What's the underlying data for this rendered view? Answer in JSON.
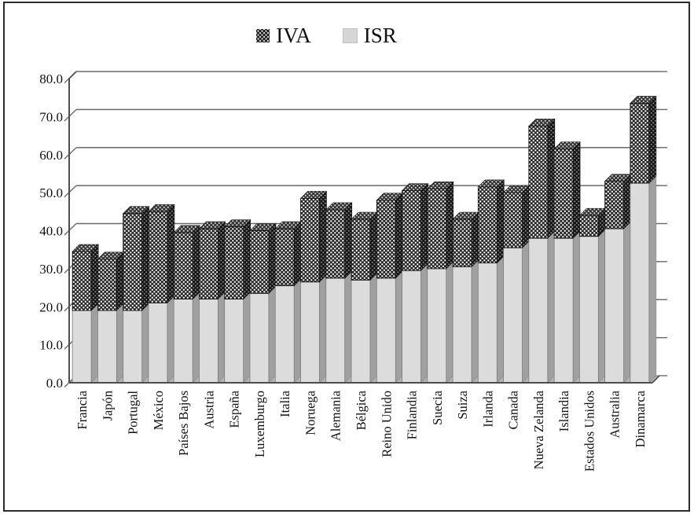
{
  "legend": {
    "items": [
      "IVA",
      "ISR"
    ]
  },
  "y_axis": {
    "tick_labels": [
      "0.0",
      "10.0",
      "20.0",
      "30.0",
      "40.0",
      "50.0",
      "60.0",
      "70.0",
      "80.0"
    ],
    "min": 0,
    "max": 80,
    "step": 10
  },
  "chart_data": {
    "type": "bar",
    "stacked": true,
    "style": "3d-column",
    "title": "",
    "xlabel": "",
    "ylabel": "",
    "ylim": [
      0,
      80
    ],
    "grid": true,
    "legend_position": "top-center",
    "categories": [
      "Francia",
      "Japón",
      "Portugal",
      "México",
      "Países Bajos",
      "Austria",
      "España",
      "Luxemburgo",
      "Italia",
      "Noruega",
      "Alemania",
      "Bélgica",
      "Reino Unido",
      "Finlandia",
      "Suecia",
      "Suiza",
      "Irlanda",
      "Canada",
      "Nueva Zelanda",
      "Islandia",
      "Estados Unidos",
      "Australia",
      "Dinamarca"
    ],
    "series": [
      {
        "name": "ISR",
        "values": [
          19.0,
          19.0,
          19.0,
          21.0,
          22.0,
          22.0,
          22.0,
          23.5,
          25.5,
          26.5,
          27.5,
          27.0,
          27.5,
          29.5,
          30.0,
          30.5,
          31.5,
          35.5,
          38.0,
          38.0,
          38.5,
          40.5,
          52.5
        ]
      },
      {
        "name": "IVA",
        "values": [
          15.5,
          13.5,
          25.5,
          24.0,
          17.5,
          18.5,
          19.0,
          16.5,
          15.0,
          22.0,
          18.0,
          16.0,
          20.5,
          21.0,
          21.0,
          12.5,
          20.0,
          14.5,
          29.5,
          23.5,
          5.5,
          12.5,
          21.0
        ]
      }
    ],
    "totals": [
      34.5,
      32.5,
      44.5,
      45.0,
      39.5,
      40.5,
      41.0,
      40.0,
      40.5,
      48.5,
      45.5,
      43.0,
      48.0,
      50.5,
      51.0,
      43.0,
      51.5,
      50.0,
      67.5,
      61.5,
      44.0,
      53.0,
      73.5
    ],
    "colors": {
      "iva_pattern_bg": "#262626",
      "iva_pattern_dot": "#fafafa",
      "isr_fill": "#dcdcdc",
      "isr_side": "#a0a0a0",
      "floor": "#b5b5b5",
      "gridline": "#6a6a6a",
      "axis": "#4d4d4d",
      "text": "#111111"
    }
  }
}
